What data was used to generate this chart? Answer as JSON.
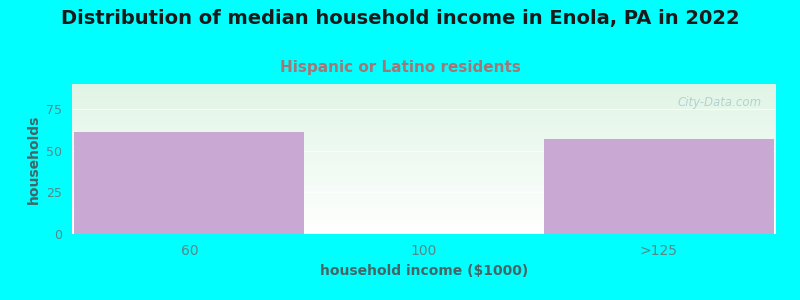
{
  "title": "Distribution of median household income in Enola, PA in 2022",
  "subtitle": "Hispanic or Latino residents",
  "categories": [
    "60",
    "100",
    ">125"
  ],
  "values": [
    61,
    0,
    57
  ],
  "bar_color": "#c9a8d4",
  "background_color": "#00ffff",
  "xlabel": "household income ($1000)",
  "ylabel": "households",
  "ylim": [
    0,
    90
  ],
  "yticks": [
    0,
    25,
    50,
    75
  ],
  "title_fontsize": 14,
  "subtitle_fontsize": 11,
  "subtitle_color": "#a07878",
  "tick_label_color": "#558888",
  "axis_label_color": "#446666",
  "watermark": "City-Data.com",
  "watermark_color": "#aacccc"
}
